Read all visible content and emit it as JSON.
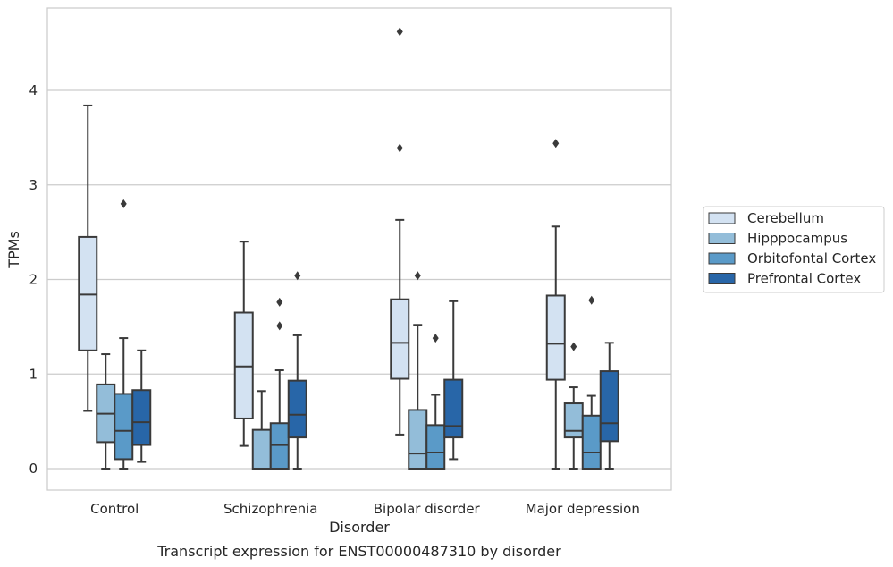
{
  "chart_data": {
    "type": "box",
    "xlabel": "Disorder",
    "ylabel": "TPMs",
    "caption": "Transcript expression for ENST00000487310 by disorder",
    "ylim": [
      -0.22,
      4.88
    ],
    "yticks": [
      0,
      1,
      2,
      3,
      4
    ],
    "grid": "horizontal",
    "legend_position": "right",
    "categories": [
      "Control",
      "Schizophrenia",
      "Bipolar disorder",
      "Major depression"
    ],
    "series": [
      {
        "name": "Cerebellum",
        "color": "#d3e2f2",
        "boxes": [
          {
            "whisker_low": 0.61,
            "q1": 1.25,
            "median": 1.84,
            "q3": 2.45,
            "whisker_high": 3.84,
            "outliers": []
          },
          {
            "whisker_low": 0.24,
            "q1": 0.53,
            "median": 1.08,
            "q3": 1.65,
            "whisker_high": 2.4,
            "outliers": []
          },
          {
            "whisker_low": 0.36,
            "q1": 0.95,
            "median": 1.33,
            "q3": 1.79,
            "whisker_high": 2.63,
            "outliers": [
              3.39,
              4.62
            ]
          },
          {
            "whisker_low": 0.0,
            "q1": 0.94,
            "median": 1.32,
            "q3": 1.83,
            "whisker_high": 2.56,
            "outliers": [
              3.44
            ]
          }
        ]
      },
      {
        "name": "Hipppocampus",
        "color": "#93bdd9",
        "boxes": [
          {
            "whisker_low": 0.0,
            "q1": 0.28,
            "median": 0.58,
            "q3": 0.89,
            "whisker_high": 1.21,
            "outliers": []
          },
          {
            "whisker_low": 0.0,
            "q1": 0.0,
            "median": 0.0,
            "q3": 0.41,
            "whisker_high": 0.82,
            "outliers": []
          },
          {
            "whisker_low": 0.0,
            "q1": 0.0,
            "median": 0.16,
            "q3": 0.62,
            "whisker_high": 1.52,
            "outliers": [
              2.04
            ]
          },
          {
            "whisker_low": 0.0,
            "q1": 0.33,
            "median": 0.4,
            "q3": 0.69,
            "whisker_high": 0.86,
            "outliers": [
              1.29
            ]
          }
        ]
      },
      {
        "name": "Orbitofontal Cortex",
        "color": "#5a9ac8",
        "boxes": [
          {
            "whisker_low": 0.0,
            "q1": 0.1,
            "median": 0.4,
            "q3": 0.79,
            "whisker_high": 1.38,
            "outliers": [
              2.8
            ]
          },
          {
            "whisker_low": 0.0,
            "q1": 0.0,
            "median": 0.25,
            "q3": 0.48,
            "whisker_high": 1.04,
            "outliers": [
              1.51,
              1.76
            ]
          },
          {
            "whisker_low": 0.0,
            "q1": 0.0,
            "median": 0.17,
            "q3": 0.46,
            "whisker_high": 0.78,
            "outliers": [
              1.38
            ]
          },
          {
            "whisker_low": 0.0,
            "q1": 0.0,
            "median": 0.17,
            "q3": 0.56,
            "whisker_high": 0.77,
            "outliers": [
              1.78
            ]
          }
        ]
      },
      {
        "name": "Prefrontal Cortex",
        "color": "#2866a8",
        "boxes": [
          {
            "whisker_low": 0.07,
            "q1": 0.25,
            "median": 0.49,
            "q3": 0.83,
            "whisker_high": 1.25,
            "outliers": []
          },
          {
            "whisker_low": 0.0,
            "q1": 0.33,
            "median": 0.57,
            "q3": 0.93,
            "whisker_high": 1.41,
            "outliers": [
              2.04
            ]
          },
          {
            "whisker_low": 0.1,
            "q1": 0.33,
            "median": 0.45,
            "q3": 0.94,
            "whisker_high": 1.77,
            "outliers": []
          },
          {
            "whisker_low": 0.0,
            "q1": 0.29,
            "median": 0.48,
            "q3": 1.03,
            "whisker_high": 1.33,
            "outliers": []
          }
        ]
      }
    ]
  }
}
